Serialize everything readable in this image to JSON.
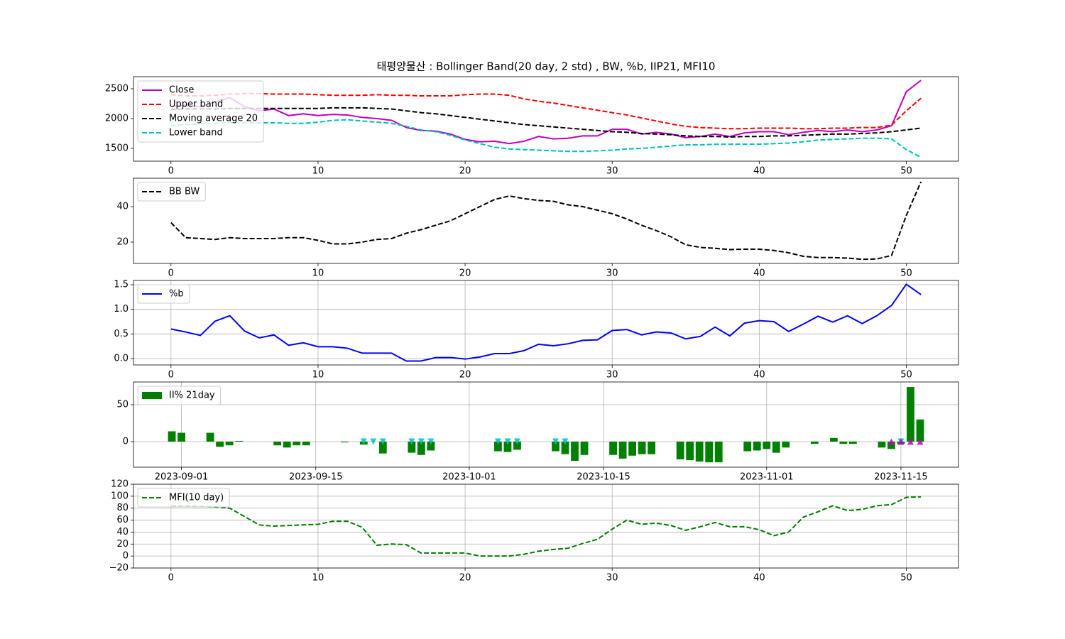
{
  "chart_data": [
    {
      "type": "line",
      "title": "태평양물산 : Bollinger Band(20 day, 2 std) , BW, %b, IIP21, MFI10",
      "x": [
        0,
        1,
        2,
        3,
        4,
        5,
        6,
        7,
        8,
        9,
        10,
        11,
        12,
        13,
        14,
        15,
        16,
        17,
        18,
        19,
        20,
        21,
        22,
        23,
        24,
        25,
        26,
        27,
        28,
        29,
        30,
        31,
        32,
        33,
        34,
        35,
        36,
        37,
        38,
        39,
        40,
        41,
        42,
        43,
        44,
        45,
        46,
        47,
        48,
        49,
        50,
        51
      ],
      "xlim": [
        -2.55,
        53.55
      ],
      "xticks": [
        0,
        10,
        20,
        30,
        40,
        50
      ],
      "ylim": [
        1286,
        2702
      ],
      "yticks": [
        1500,
        2000,
        2500
      ],
      "grid": false,
      "legend": "upper left",
      "series": [
        {
          "name": "Close",
          "type": "line",
          "color": "#bf00bf",
          "linestyle": "solid",
          "values": [
            2200,
            2230,
            2200,
            2280,
            2350,
            2200,
            2130,
            2160,
            2050,
            2080,
            2050,
            2070,
            2060,
            2020,
            2000,
            1970,
            1850,
            1800,
            1790,
            1740,
            1650,
            1610,
            1620,
            1580,
            1620,
            1700,
            1660,
            1670,
            1710,
            1710,
            1820,
            1820,
            1740,
            1770,
            1740,
            1680,
            1700,
            1740,
            1700,
            1760,
            1780,
            1780,
            1730,
            1770,
            1800,
            1780,
            1810,
            1780,
            1810,
            1880,
            2450,
            2640
          ]
        },
        {
          "name": "Upper band",
          "type": "line",
          "color": "#ff0000",
          "linestyle": "dashed",
          "values": [
            2400,
            2380,
            2380,
            2390,
            2410,
            2420,
            2420,
            2410,
            2410,
            2410,
            2400,
            2390,
            2390,
            2390,
            2400,
            2390,
            2390,
            2380,
            2380,
            2380,
            2400,
            2410,
            2410,
            2390,
            2330,
            2290,
            2260,
            2220,
            2180,
            2140,
            2100,
            2060,
            2010,
            1960,
            1910,
            1870,
            1850,
            1840,
            1830,
            1830,
            1840,
            1840,
            1840,
            1830,
            1830,
            1840,
            1840,
            1850,
            1850,
            1890,
            2130,
            2340
          ]
        },
        {
          "name": "Moving average 20",
          "type": "line",
          "color": "#000000",
          "linestyle": "dashed",
          "values": [
            2150,
            2160,
            2160,
            2160,
            2170,
            2170,
            2170,
            2170,
            2170,
            2170,
            2170,
            2180,
            2180,
            2180,
            2170,
            2160,
            2130,
            2100,
            2080,
            2050,
            2020,
            1990,
            1960,
            1930,
            1900,
            1880,
            1860,
            1840,
            1820,
            1800,
            1780,
            1770,
            1750,
            1740,
            1730,
            1710,
            1700,
            1700,
            1690,
            1700,
            1700,
            1710,
            1710,
            1720,
            1730,
            1740,
            1740,
            1750,
            1760,
            1780,
            1810,
            1840
          ]
        },
        {
          "name": "Lower band",
          "type": "line",
          "color": "#00bfbf",
          "linestyle": "dashed",
          "values": [
            1880,
            1900,
            1910,
            1920,
            1930,
            1930,
            1930,
            1930,
            1920,
            1920,
            1940,
            1970,
            1980,
            1960,
            1940,
            1920,
            1870,
            1810,
            1780,
            1720,
            1640,
            1580,
            1520,
            1490,
            1480,
            1470,
            1460,
            1450,
            1450,
            1460,
            1470,
            1490,
            1500,
            1520,
            1540,
            1560,
            1560,
            1570,
            1570,
            1570,
            1570,
            1580,
            1590,
            1610,
            1640,
            1650,
            1660,
            1670,
            1670,
            1660,
            1480,
            1350
          ]
        }
      ]
    },
    {
      "type": "line",
      "x": [
        0,
        1,
        2,
        3,
        4,
        5,
        6,
        7,
        8,
        9,
        10,
        11,
        12,
        13,
        14,
        15,
        16,
        17,
        18,
        19,
        20,
        21,
        22,
        23,
        24,
        25,
        26,
        27,
        28,
        29,
        30,
        31,
        32,
        33,
        34,
        35,
        36,
        37,
        38,
        39,
        40,
        41,
        42,
        43,
        44,
        45,
        46,
        47,
        48,
        49,
        50,
        51
      ],
      "xlim": [
        -2.55,
        53.55
      ],
      "xticks": [
        0,
        10,
        20,
        30,
        40,
        50
      ],
      "ylim": [
        8,
        56
      ],
      "yticks": [
        20,
        40
      ],
      "grid": false,
      "legend": "upper left",
      "series": [
        {
          "name": "BB BW",
          "type": "line",
          "color": "#000000",
          "linestyle": "dashed",
          "values": [
            31,
            22.5,
            22,
            21.5,
            22.5,
            22,
            22,
            22,
            22.5,
            22.5,
            21,
            19,
            19,
            20,
            21.5,
            22,
            25,
            27,
            29.5,
            32,
            36,
            40,
            44,
            46,
            44.5,
            43.5,
            43,
            41,
            40,
            38,
            36,
            33,
            29.5,
            26.5,
            23,
            18.5,
            17,
            16.5,
            15.8,
            16,
            16,
            15.3,
            14,
            12,
            11.3,
            11.3,
            11,
            10.3,
            10.5,
            12.5,
            35,
            54
          ]
        }
      ]
    },
    {
      "type": "line",
      "x": [
        0,
        1,
        2,
        3,
        4,
        5,
        6,
        7,
        8,
        9,
        10,
        11,
        12,
        13,
        14,
        15,
        16,
        17,
        18,
        19,
        20,
        21,
        22,
        23,
        24,
        25,
        26,
        27,
        28,
        29,
        30,
        31,
        32,
        33,
        34,
        35,
        36,
        37,
        38,
        39,
        40,
        41,
        42,
        43,
        44,
        45,
        46,
        47,
        48,
        49,
        50,
        51
      ],
      "xlim": [
        -2.55,
        53.55
      ],
      "xticks": [
        0,
        10,
        20,
        30,
        40,
        50
      ],
      "ylim": [
        -0.13,
        1.587
      ],
      "yticks": [
        {
          "value": 0,
          "label": "0.0"
        },
        0.5,
        {
          "value": 1,
          "label": "1.0"
        },
        1.5
      ],
      "grid": true,
      "legend": "upper left",
      "series": [
        {
          "name": "%b",
          "type": "line",
          "color": "#0000ff",
          "linestyle": "solid",
          "values": [
            0.6,
            0.54,
            0.47,
            0.76,
            0.87,
            0.56,
            0.42,
            0.48,
            0.27,
            0.32,
            0.24,
            0.24,
            0.21,
            0.11,
            0.11,
            0.11,
            -0.05,
            -0.05,
            0.02,
            0.02,
            -0.01,
            0.03,
            0.1,
            0.1,
            0.16,
            0.29,
            0.26,
            0.3,
            0.37,
            0.38,
            0.57,
            0.59,
            0.48,
            0.54,
            0.52,
            0.4,
            0.45,
            0.64,
            0.46,
            0.72,
            0.77,
            0.75,
            0.55,
            0.7,
            0.86,
            0.74,
            0.87,
            0.71,
            0.87,
            1.08,
            1.51,
            1.3
          ]
        }
      ]
    },
    {
      "type": "bar",
      "x": [
        "2023-08-31",
        "2023-09-01",
        "2023-09-04",
        "2023-09-05",
        "2023-09-06",
        "2023-09-07",
        "2023-09-08",
        "2023-09-11",
        "2023-09-12",
        "2023-09-13",
        "2023-09-14",
        "2023-09-15",
        "2023-09-18",
        "2023-09-19",
        "2023-09-20",
        "2023-09-21",
        "2023-09-22",
        "2023-09-25",
        "2023-09-26",
        "2023-09-27",
        "2023-10-04",
        "2023-10-05",
        "2023-10-06",
        "2023-10-10",
        "2023-10-11",
        "2023-10-12",
        "2023-10-13",
        "2023-10-16",
        "2023-10-17",
        "2023-10-18",
        "2023-10-19",
        "2023-10-20",
        "2023-10-23",
        "2023-10-24",
        "2023-10-25",
        "2023-10-26",
        "2023-10-27",
        "2023-10-30",
        "2023-10-31",
        "2023-11-01",
        "2023-11-02",
        "2023-11-03",
        "2023-11-06",
        "2023-11-07",
        "2023-11-08",
        "2023-11-09",
        "2023-11-10",
        "2023-11-13",
        "2023-11-14",
        "2023-11-15",
        "2023-11-16",
        "2023-11-17"
      ],
      "xlim": [
        "2023-08-27",
        "2023-11-21"
      ],
      "xticks": [
        "2023-09-01",
        "2023-09-15",
        "2023-10-01",
        "2023-10-15",
        "2023-11-01",
        "2023-11-15"
      ],
      "ylim": [
        -34.6,
        80.8
      ],
      "yticks": [
        0,
        50
      ],
      "grid": true,
      "legend": "upper left",
      "series": [
        {
          "name": "II% 21day",
          "type": "bar",
          "color": "#008000",
          "values": [
            14,
            12,
            12,
            -7,
            -5,
            1,
            0,
            -5,
            -8,
            -5,
            -5,
            0,
            -1,
            0,
            -4,
            0,
            -16,
            -15,
            -18,
            -12,
            -13,
            -14,
            -11,
            -13,
            -17,
            -26,
            -18,
            -18,
            -23,
            -19,
            -17,
            -17,
            -24,
            -25,
            -27,
            -28,
            -28,
            -13,
            -12,
            -10,
            -15,
            -8,
            -3,
            0,
            5,
            -3,
            -3,
            -8,
            -10,
            -3,
            74,
            30
          ]
        },
        {
          "type": "marker",
          "marker": "v",
          "color": "#00bfbf",
          "values": [
            null,
            null,
            null,
            null,
            null,
            null,
            null,
            null,
            null,
            null,
            null,
            null,
            null,
            null,
            0,
            0,
            0,
            0,
            0,
            0,
            0,
            0,
            0,
            0,
            0,
            null,
            null,
            null,
            null,
            null,
            null,
            null,
            null,
            null,
            null,
            null,
            null,
            null,
            null,
            null,
            null,
            null,
            null,
            null,
            null,
            null,
            null,
            null,
            null,
            0,
            null,
            null
          ]
        },
        {
          "type": "marker",
          "marker": "^",
          "color": "#bf00bf",
          "values": [
            null,
            null,
            null,
            null,
            null,
            null,
            null,
            null,
            null,
            null,
            null,
            null,
            null,
            null,
            null,
            null,
            null,
            null,
            null,
            null,
            null,
            null,
            null,
            null,
            null,
            null,
            null,
            null,
            null,
            null,
            null,
            null,
            null,
            null,
            null,
            null,
            null,
            null,
            null,
            null,
            null,
            null,
            null,
            null,
            null,
            null,
            null,
            null,
            0,
            0,
            0,
            0
          ]
        }
      ]
    },
    {
      "type": "line",
      "x": [
        0,
        1,
        2,
        3,
        4,
        5,
        6,
        7,
        8,
        9,
        10,
        11,
        12,
        13,
        14,
        15,
        16,
        17,
        18,
        19,
        20,
        21,
        22,
        23,
        24,
        25,
        26,
        27,
        28,
        29,
        30,
        31,
        32,
        33,
        34,
        35,
        36,
        37,
        38,
        39,
        40,
        41,
        42,
        43,
        44,
        45,
        46,
        47,
        48,
        49,
        50,
        51
      ],
      "xlim": [
        -2.55,
        53.55
      ],
      "xticks": [
        0,
        10,
        20,
        30,
        40,
        50
      ],
      "ylim": [
        -20,
        120
      ],
      "yticks": [
        {
          "value": -20,
          "label": "−20"
        },
        0,
        20,
        40,
        60,
        80,
        100,
        120
      ],
      "grid": true,
      "legend": "upper left",
      "series": [
        {
          "name": "MFI(10 day)",
          "type": "line",
          "color": "#008000",
          "linestyle": "dashed",
          "values": [
            84,
            84,
            83,
            82,
            80,
            66,
            52,
            50,
            51,
            52,
            53,
            58,
            58,
            48,
            18,
            20,
            19,
            5,
            5,
            5,
            5,
            0,
            0,
            0,
            3,
            8,
            11,
            13,
            21,
            28,
            45,
            60,
            53,
            55,
            51,
            43,
            49,
            56,
            49,
            49,
            44,
            34,
            40,
            65,
            74,
            84,
            76,
            78,
            84,
            86,
            98,
            99
          ]
        }
      ]
    }
  ]
}
